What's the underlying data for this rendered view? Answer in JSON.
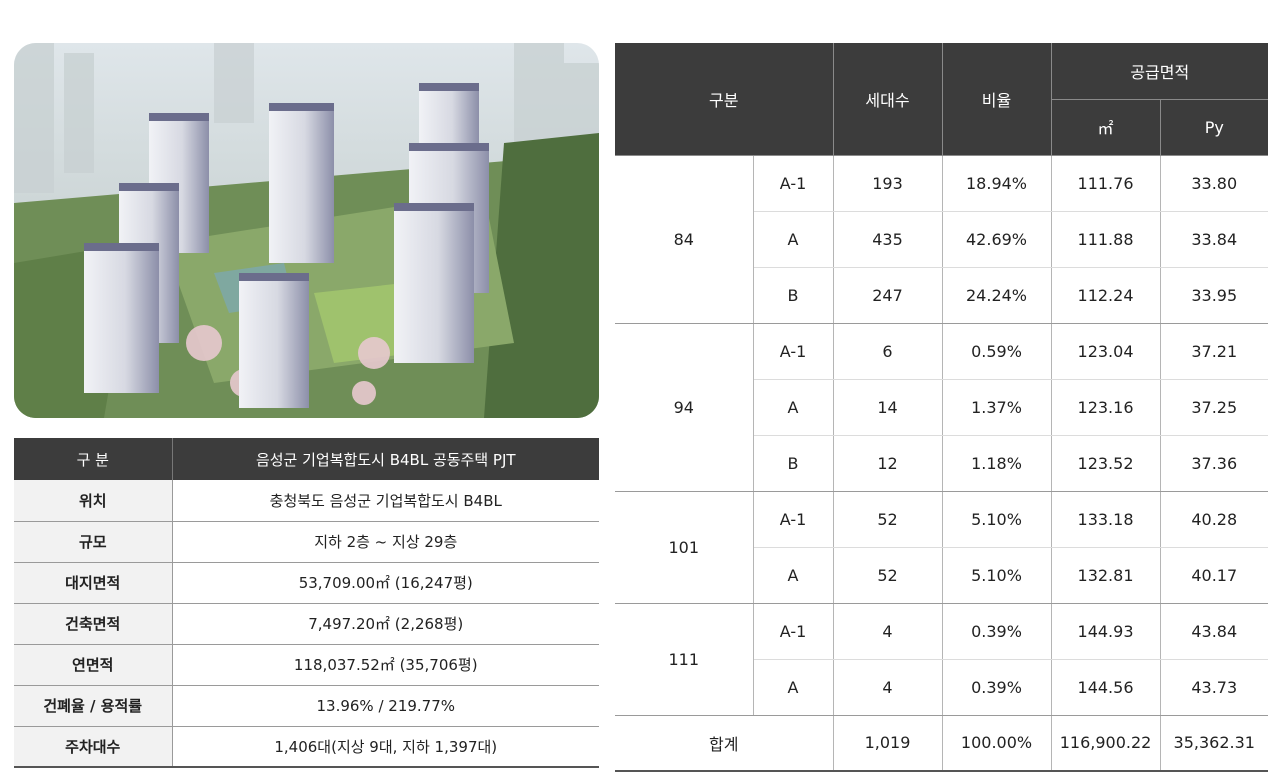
{
  "overview": {
    "header": {
      "label": "구 분",
      "value": "음성군 기업복합도시 B4BL 공동주택 PJT"
    },
    "rows": [
      {
        "label": "위치",
        "value": "충청북도 음성군 기업복합도시 B4BL"
      },
      {
        "label": "규모",
        "value": "지하 2층 ~ 지상 29층"
      },
      {
        "label": "대지면적",
        "value": "53,709.00㎡ (16,247평)"
      },
      {
        "label": "건축면적",
        "value": "7,497.20㎡ (2,268평)"
      },
      {
        "label": "연면적",
        "value": "118,037.52㎡ (35,706평)"
      },
      {
        "label": "건폐율 / 용적률",
        "value": "13.96% / 219.77%"
      },
      {
        "label": "주차대수",
        "value": "1,406대(지상 9대, 지하 1,397대)"
      }
    ]
  },
  "supply": {
    "headers": {
      "category": "구분",
      "households": "세대수",
      "ratio": "비율",
      "area": "공급면적",
      "sqm": "㎡",
      "py": "Py"
    },
    "groups": [
      {
        "size": "84",
        "rows": [
          {
            "type": "A-1",
            "households": "193",
            "ratio": "18.94%",
            "sqm": "111.76",
            "py": "33.80"
          },
          {
            "type": "A",
            "households": "435",
            "ratio": "42.69%",
            "sqm": "111.88",
            "py": "33.84"
          },
          {
            "type": "B",
            "households": "247",
            "ratio": "24.24%",
            "sqm": "112.24",
            "py": "33.95"
          }
        ]
      },
      {
        "size": "94",
        "rows": [
          {
            "type": "A-1",
            "households": "6",
            "ratio": "0.59%",
            "sqm": "123.04",
            "py": "37.21"
          },
          {
            "type": "A",
            "households": "14",
            "ratio": "1.37%",
            "sqm": "123.16",
            "py": "37.25"
          },
          {
            "type": "B",
            "households": "12",
            "ratio": "1.18%",
            "sqm": "123.52",
            "py": "37.36"
          }
        ]
      },
      {
        "size": "101",
        "rows": [
          {
            "type": "A-1",
            "households": "52",
            "ratio": "5.10%",
            "sqm": "133.18",
            "py": "40.28"
          },
          {
            "type": "A",
            "households": "52",
            "ratio": "5.10%",
            "sqm": "132.81",
            "py": "40.17"
          }
        ]
      },
      {
        "size": "111",
        "rows": [
          {
            "type": "A-1",
            "households": "4",
            "ratio": "0.39%",
            "sqm": "144.93",
            "py": "43.84"
          },
          {
            "type": "A",
            "households": "4",
            "ratio": "0.39%",
            "sqm": "144.56",
            "py": "43.73"
          }
        ]
      }
    ],
    "total": {
      "label": "합계",
      "households": "1,019",
      "ratio": "100.00%",
      "sqm": "116,900.22",
      "py": "35,362.31"
    }
  }
}
